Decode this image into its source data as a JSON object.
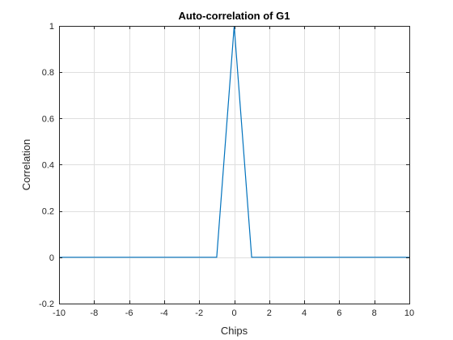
{
  "chart_data": {
    "type": "line",
    "title": "Auto-correlation of G1",
    "xlabel": "Chips",
    "ylabel": "Correlation",
    "xlim": [
      -10,
      10
    ],
    "ylim": [
      -0.2,
      1
    ],
    "xticks": [
      -10,
      -8,
      -6,
      -4,
      -2,
      0,
      2,
      4,
      6,
      8,
      10
    ],
    "yticks": [
      -0.2,
      0,
      0.2,
      0.4,
      0.6,
      0.8,
      1
    ],
    "xtick_labels": [
      "-10",
      "-8",
      "-6",
      "-4",
      "-2",
      "0",
      "2",
      "4",
      "6",
      "8",
      "10"
    ],
    "ytick_labels": [
      "-0.2",
      "0",
      "0.2",
      "0.4",
      "0.6",
      "0.8",
      "1"
    ],
    "grid": true,
    "series": [
      {
        "x": [
          -10,
          -1,
          0,
          1,
          10
        ],
        "y": [
          0,
          0,
          1,
          0,
          0
        ],
        "color": "#0072BD"
      }
    ]
  }
}
